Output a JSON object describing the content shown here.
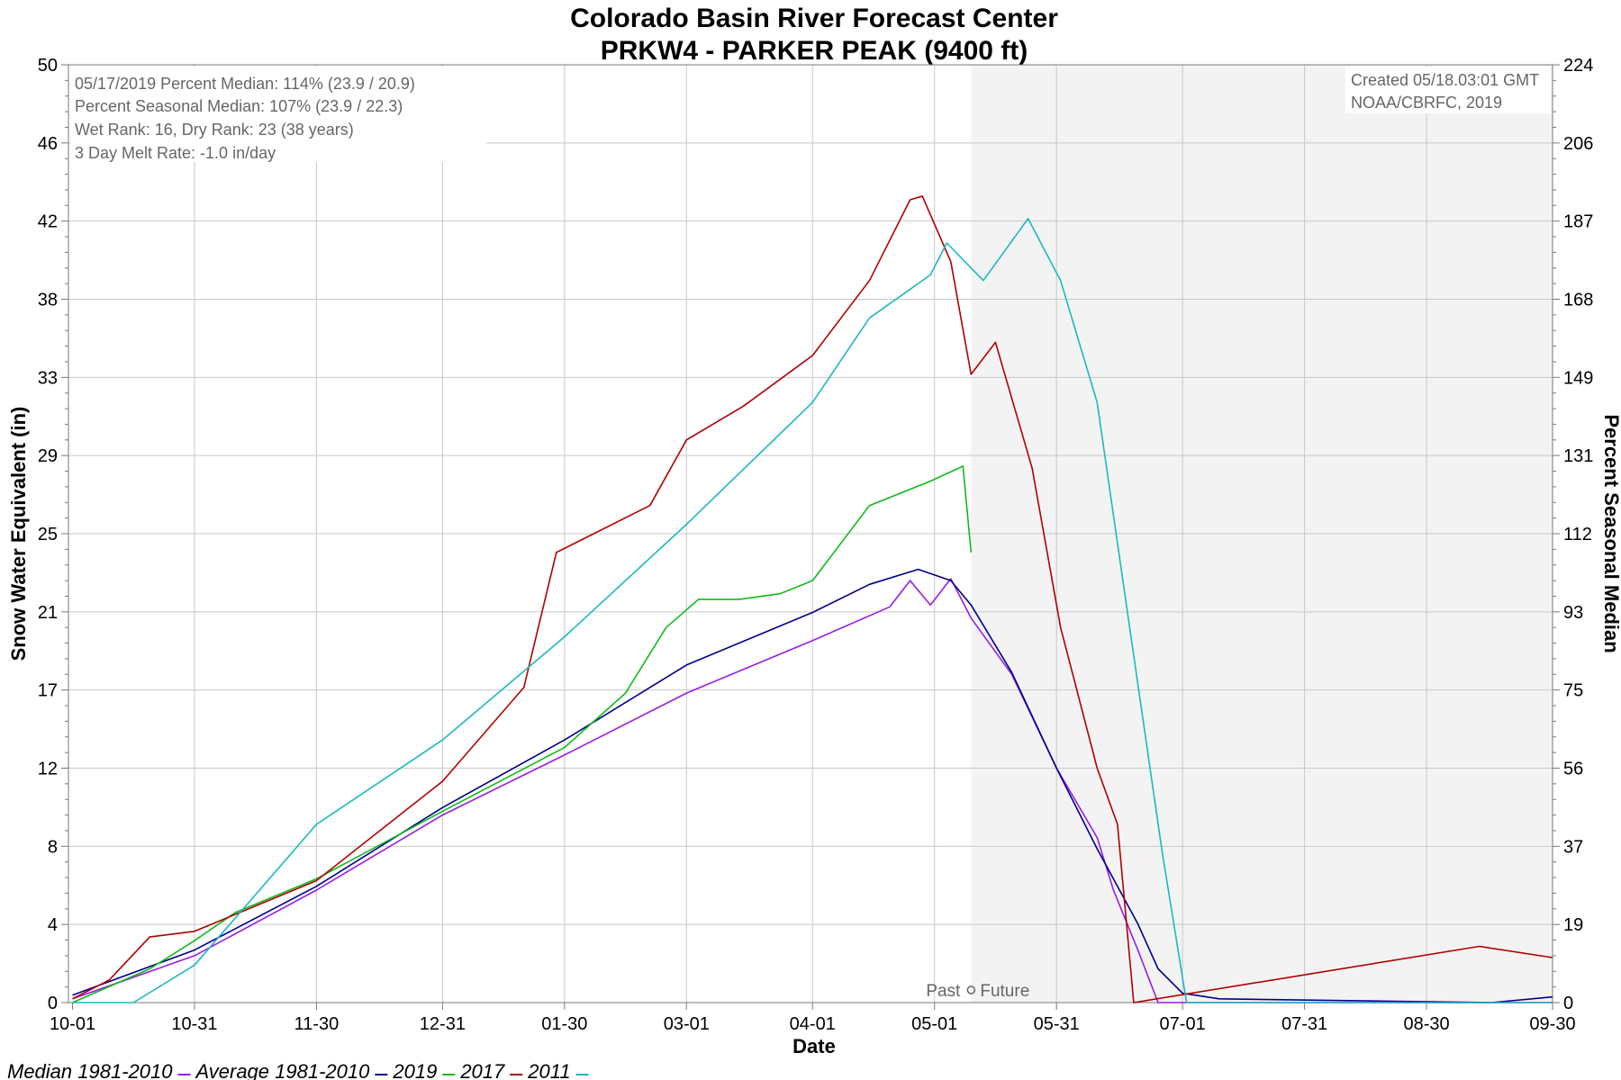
{
  "chart_data": {
    "type": "line",
    "title": "Colorado Basin River Forecast Center",
    "subtitle": "PRKW4 - PARKER PEAK (9400 ft)",
    "xlabel": "Date",
    "ylabel": "Snow Water Equivalent (in)",
    "y2label": "Percent Seasonal Median",
    "x_ticks": [
      "10-01",
      "10-31",
      "11-30",
      "12-31",
      "01-30",
      "03-01",
      "04-01",
      "05-01",
      "05-31",
      "07-01",
      "07-31",
      "08-30",
      "09-30"
    ],
    "y_ticks": [
      "0",
      "4",
      "8",
      "12",
      "17",
      "21",
      "25",
      "29",
      "33",
      "38",
      "42",
      "46",
      "50"
    ],
    "y2_ticks": [
      "0",
      "19",
      "37",
      "56",
      "75",
      "93",
      "112",
      "131",
      "149",
      "168",
      "187",
      "206",
      "224"
    ],
    "ylim": [
      0,
      50
    ],
    "grid": true,
    "forecast_region": {
      "start": "05-10",
      "past_label": "Past",
      "future_label": "Future"
    },
    "info_box": [
      "05/17/2019 Percent Median: 114% (23.9 / 20.9)",
      "Percent Seasonal Median: 107% (23.9 / 22.3)",
      "Wet Rank: 16, Dry Rank: 23  (38 years)",
      "3 Day Melt Rate: -1.0 in/day"
    ],
    "credit": [
      "Created 05/18.03:01 GMT",
      "NOAA/CBRFC, 2019"
    ],
    "series": [
      {
        "name": "Median 1981-2010",
        "color": "#9a1ce8",
        "x": [
          "10-01",
          "10-31",
          "11-30",
          "12-31",
          "01-30",
          "03-01",
          "04-01",
          "04-20",
          "04-25",
          "04-30",
          "05-05",
          "05-10",
          "05-20",
          "05-31",
          "06-10",
          "06-14",
          "06-20",
          "06-25",
          "07-01",
          "09-30"
        ],
        "y": [
          0.2,
          2.5,
          6.0,
          10.0,
          13.2,
          16.5,
          19.3,
          21.1,
          22.5,
          21.2,
          22.6,
          20.5,
          17.5,
          12.5,
          8.8,
          6.0,
          2.8,
          0,
          0,
          0
        ]
      },
      {
        "name": "Average 1981-2010",
        "color": "#00008b",
        "x": [
          "10-01",
          "10-31",
          "11-30",
          "12-31",
          "01-30",
          "03-01",
          "04-01",
          "04-15",
          "04-27",
          "05-05",
          "05-10",
          "05-20",
          "05-31",
          "06-10",
          "06-20",
          "06-25",
          "07-01",
          "07-10",
          "09-15",
          "09-30"
        ],
        "y": [
          0.4,
          2.8,
          6.2,
          10.4,
          14.0,
          18.0,
          20.8,
          22.3,
          23.1,
          22.5,
          21.2,
          17.6,
          12.5,
          8.2,
          4.2,
          1.8,
          0.5,
          0.2,
          0,
          0.3
        ]
      },
      {
        "name": "2019",
        "color": "#0fbb1a",
        "x": [
          "10-01",
          "10-20",
          "10-31",
          "11-10",
          "11-30",
          "12-31",
          "01-30",
          "02-14",
          "02-24",
          "03-04",
          "03-14",
          "03-24",
          "04-01",
          "04-15",
          "04-30",
          "05-08",
          "05-10"
        ],
        "y": [
          0,
          1.8,
          3.3,
          4.8,
          6.6,
          10.2,
          13.6,
          16.5,
          20.0,
          21.5,
          21.5,
          21.8,
          22.5,
          26.5,
          27.8,
          28.6,
          24.0
        ]
      },
      {
        "name": "2017",
        "color": "#b00000",
        "x": [
          "10-01",
          "10-10",
          "10-20",
          "10-31",
          "11-30",
          "12-31",
          "01-20",
          "01-28",
          "02-20",
          "03-01",
          "03-15",
          "04-01",
          "04-15",
          "04-25",
          "04-28",
          "05-05",
          "05-10",
          "05-16",
          "05-25",
          "06-01",
          "06-10",
          "06-15",
          "06-19",
          "09-12",
          "09-30"
        ],
        "y": [
          0.2,
          1.2,
          3.5,
          3.8,
          6.5,
          11.8,
          16.8,
          24.0,
          26.5,
          30.0,
          31.8,
          34.5,
          38.5,
          42.8,
          43.0,
          39.5,
          33.5,
          35.2,
          28.5,
          20.0,
          12.5,
          9.5,
          0,
          3.0,
          2.4
        ]
      },
      {
        "name": "2011",
        "color": "#1cb8c0",
        "x": [
          "10-01",
          "10-16",
          "10-31",
          "11-30",
          "12-31",
          "01-30",
          "03-01",
          "04-01",
          "04-15",
          "04-30",
          "05-04",
          "05-13",
          "05-24",
          "06-01",
          "06-10",
          "06-18",
          "06-26",
          "07-02",
          "09-30"
        ],
        "y": [
          0,
          0,
          2.0,
          9.5,
          14.0,
          19.5,
          25.5,
          32.0,
          36.5,
          38.8,
          40.5,
          38.5,
          41.8,
          38.5,
          32.0,
          20.0,
          8.0,
          0,
          0
        ]
      }
    ]
  }
}
